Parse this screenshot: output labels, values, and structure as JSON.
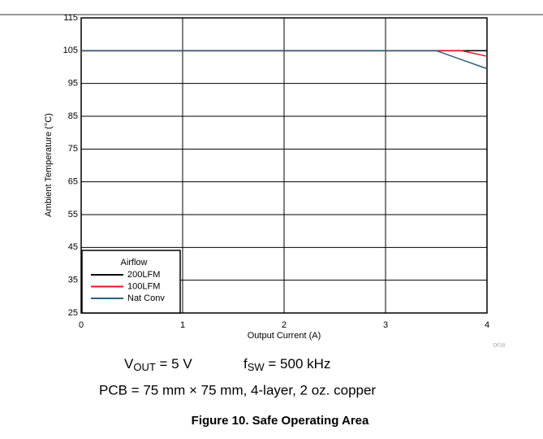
{
  "chart_data": {
    "type": "line",
    "x": [
      0,
      3.5,
      3.75,
      4
    ],
    "series": [
      {
        "name": "200LFM",
        "color": "#000000",
        "values": [
          105,
          105,
          105,
          105
        ]
      },
      {
        "name": "100LFM",
        "color": "#e8141b",
        "values": [
          105,
          105,
          105,
          103.3
        ]
      },
      {
        "name": "Nat Conv",
        "color": "#2e5f7e",
        "values": [
          105,
          105,
          102.25,
          99.5
        ]
      }
    ],
    "xlim": [
      0,
      4
    ],
    "xticks": [
      0,
      1,
      2,
      3,
      4
    ],
    "ylim": [
      25,
      115
    ],
    "yticks": [
      25,
      35,
      45,
      55,
      65,
      75,
      85,
      95,
      105,
      115
    ],
    "grid": true,
    "x_label": "Output Current (A)",
    "y_label": "Ambient Temperature (°C)",
    "legend_title": "Airflow",
    "legend": "lower left",
    "code": "D018",
    "conditions": {
      "vout": {
        "base": "V",
        "sub": "OUT",
        "rest": " = 5 V"
      },
      "fsw": {
        "base": "f",
        "sub": "SW",
        "rest": " = 500 kHz"
      },
      "pcb": "PCB = 75 mm × 75 mm, 4-layer, 2 oz. copper"
    },
    "caption": "Figure 10. Safe Operating Area"
  }
}
